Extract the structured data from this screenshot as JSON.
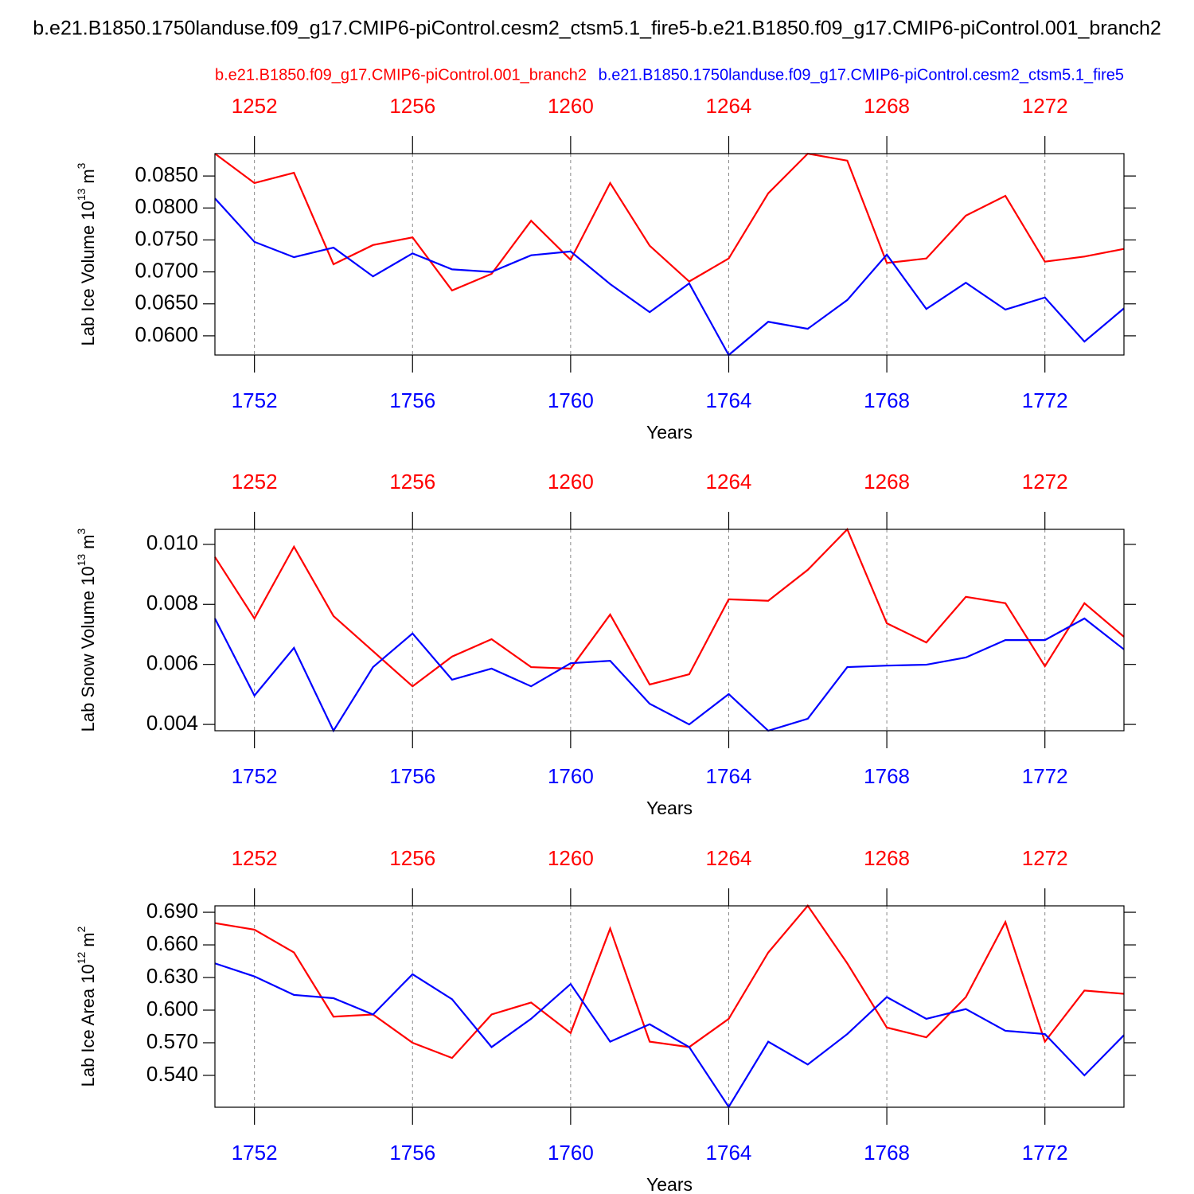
{
  "title": "b.e21.B1850.1750landuse.f09_g17.CMIP6-piControl.cesm2_ctsm5.1_fire5-b.e21.B1850.f09_g17.CMIP6-piControl.001_branch2",
  "legend": [
    {
      "name": "b.e21.B1850.f09_g17.CMIP6-piControl.001_branch2",
      "color": "#ff0000"
    },
    {
      "name": "b.e21.B1850.1750landuse.f09_g17.CMIP6-piControl.cesm2_ctsm5.1_fire5",
      "color": "#0000ff"
    }
  ],
  "chart_data": [
    {
      "type": "line",
      "xlabel": "Years",
      "ylabel": {
        "text": "Lab Ice Volume 10",
        "exp": "13",
        "unit": "m",
        "unit_exp": "3"
      },
      "xlim": [
        1751,
        1774
      ],
      "xticks": [
        1752,
        1756,
        1760,
        1764,
        1768,
        1772
      ],
      "x2lim": [
        1251,
        1274
      ],
      "x2ticks": [
        1252,
        1256,
        1260,
        1264,
        1268,
        1272
      ],
      "ylim": [
        0.057,
        0.0885
      ],
      "yticks": [
        {
          "value": 0.085,
          "label": "0.0850"
        },
        {
          "value": 0.08,
          "label": "0.0800"
        },
        {
          "value": 0.075,
          "label": "0.0750"
        },
        {
          "value": 0.07,
          "label": "0.0700"
        },
        {
          "value": 0.065,
          "label": "0.0650"
        },
        {
          "value": 0.06,
          "label": "0.0600"
        }
      ],
      "grid": true,
      "series": [
        {
          "color": "#ff0000",
          "axis": "x2",
          "x": [
            1251,
            1252,
            1253,
            1254,
            1255,
            1256,
            1257,
            1258,
            1259,
            1260,
            1261,
            1262,
            1263,
            1264,
            1265,
            1266,
            1267,
            1268,
            1269,
            1270,
            1271,
            1272,
            1273,
            1274
          ],
          "values": [
            0.0885,
            0.0839,
            0.0855,
            0.0712,
            0.0742,
            0.0754,
            0.0671,
            0.0697,
            0.078,
            0.0719,
            0.0839,
            0.0741,
            0.0685,
            0.0721,
            0.0823,
            0.0885,
            0.0874,
            0.0714,
            0.0721,
            0.0788,
            0.0819,
            0.0716,
            0.0724,
            0.0736
          ]
        },
        {
          "color": "#0000ff",
          "x": [
            1751,
            1752,
            1753,
            1754,
            1755,
            1756,
            1757,
            1758,
            1759,
            1760,
            1761,
            1762,
            1763,
            1764,
            1765,
            1766,
            1767,
            1768,
            1769,
            1770,
            1771,
            1772,
            1773,
            1774
          ],
          "values": [
            0.0815,
            0.0747,
            0.0723,
            0.0738,
            0.0693,
            0.0729,
            0.0704,
            0.07,
            0.0726,
            0.0732,
            0.0681,
            0.0637,
            0.0682,
            0.057,
            0.0622,
            0.0611,
            0.0656,
            0.0727,
            0.0642,
            0.0683,
            0.0641,
            0.066,
            0.0591,
            0.0643
          ]
        }
      ]
    },
    {
      "type": "line",
      "xlabel": "Years",
      "ylabel": {
        "text": "Lab Snow Volume 10",
        "exp": "13",
        "unit": "m",
        "unit_exp": "3"
      },
      "xlim": [
        1751,
        1774
      ],
      "xticks": [
        1752,
        1756,
        1760,
        1764,
        1768,
        1772
      ],
      "x2lim": [
        1251,
        1274
      ],
      "x2ticks": [
        1252,
        1256,
        1260,
        1264,
        1268,
        1272
      ],
      "ylim": [
        0.00379,
        0.0105
      ],
      "yticks": [
        {
          "value": 0.01,
          "label": "0.010"
        },
        0.008,
        0.006,
        0.004
      ],
      "grid": true,
      "series": [
        {
          "color": "#ff0000",
          "axis": "x2",
          "x": [
            1251,
            1252,
            1253,
            1254,
            1255,
            1256,
            1257,
            1258,
            1259,
            1260,
            1261,
            1262,
            1263,
            1264,
            1265,
            1266,
            1267,
            1268,
            1269,
            1270,
            1271,
            1272,
            1273,
            1274
          ],
          "values": [
            0.00958,
            0.00753,
            0.00992,
            0.00761,
            0.00644,
            0.00527,
            0.00626,
            0.00684,
            0.00591,
            0.00586,
            0.00766,
            0.00533,
            0.00567,
            0.00817,
            0.00812,
            0.00915,
            0.0105,
            0.00737,
            0.00673,
            0.00825,
            0.00804,
            0.00594,
            0.00804,
            0.00692
          ]
        },
        {
          "color": "#0000ff",
          "x": [
            1751,
            1752,
            1753,
            1754,
            1755,
            1756,
            1757,
            1758,
            1759,
            1760,
            1761,
            1762,
            1763,
            1764,
            1765,
            1766,
            1767,
            1768,
            1769,
            1770,
            1771,
            1772,
            1773,
            1774
          ],
          "values": [
            0.00753,
            0.00496,
            0.00655,
            0.00379,
            0.00591,
            0.00703,
            0.00549,
            0.00586,
            0.00527,
            0.00604,
            0.00612,
            0.00469,
            0.004,
            0.00501,
            0.00379,
            0.00419,
            0.00591,
            0.00596,
            0.00599,
            0.00623,
            0.00681,
            0.00681,
            0.00753,
            0.0065
          ]
        }
      ]
    },
    {
      "type": "line",
      "xlabel": "Years",
      "ylabel": {
        "text": "Lab Ice Area 10",
        "exp": "12",
        "unit": "m",
        "unit_exp": "2"
      },
      "xlim": [
        1751,
        1774
      ],
      "xticks": [
        1752,
        1756,
        1760,
        1764,
        1768,
        1772
      ],
      "x2lim": [
        1251,
        1274
      ],
      "x2ticks": [
        1252,
        1256,
        1260,
        1264,
        1268,
        1272
      ],
      "ylim": [
        0.5107,
        0.6959
      ],
      "yticks": [
        {
          "value": 0.69,
          "label": "0.690"
        },
        {
          "value": 0.66,
          "label": "0.660"
        },
        {
          "value": 0.63,
          "label": "0.630"
        },
        {
          "value": 0.6,
          "label": "0.600"
        },
        {
          "value": 0.57,
          "label": "0.570"
        },
        {
          "value": 0.54,
          "label": "0.540"
        }
      ],
      "grid": true,
      "series": [
        {
          "color": "#ff0000",
          "axis": "x2",
          "x": [
            1251,
            1252,
            1253,
            1254,
            1255,
            1256,
            1257,
            1258,
            1259,
            1260,
            1261,
            1262,
            1263,
            1264,
            1265,
            1266,
            1267,
            1268,
            1269,
            1270,
            1271,
            1272,
            1273,
            1274
          ],
          "values": [
            0.68,
            0.674,
            0.653,
            0.594,
            0.596,
            0.57,
            0.556,
            0.596,
            0.607,
            0.579,
            0.675,
            0.571,
            0.566,
            0.592,
            0.653,
            0.696,
            0.643,
            0.584,
            0.575,
            0.612,
            0.681,
            0.571,
            0.618,
            0.615
          ]
        },
        {
          "color": "#0000ff",
          "x": [
            1751,
            1752,
            1753,
            1754,
            1755,
            1756,
            1757,
            1758,
            1759,
            1760,
            1761,
            1762,
            1763,
            1764,
            1765,
            1766,
            1767,
            1768,
            1769,
            1770,
            1771,
            1772,
            1773,
            1774
          ],
          "values": [
            0.643,
            0.631,
            0.614,
            0.611,
            0.596,
            0.633,
            0.61,
            0.566,
            0.592,
            0.624,
            0.571,
            0.587,
            0.566,
            0.511,
            0.571,
            0.55,
            0.578,
            0.612,
            0.592,
            0.601,
            0.581,
            0.578,
            0.54,
            0.577
          ]
        }
      ]
    }
  ]
}
